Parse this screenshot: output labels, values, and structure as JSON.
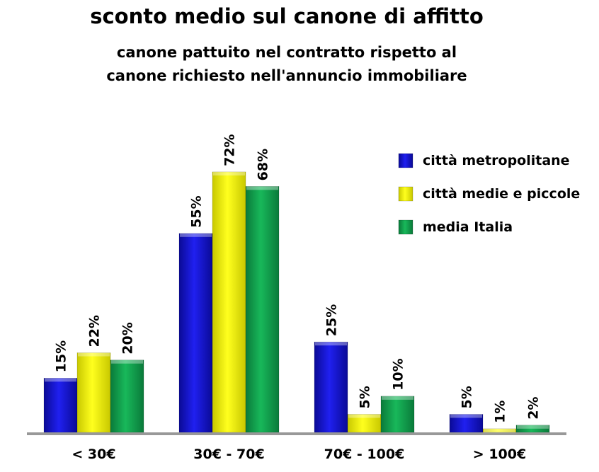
{
  "chart_data": {
    "type": "bar",
    "title": "sconto medio sul canone di affitto",
    "subtitle": [
      "canone pattuito nel contratto rispetto al",
      "canone richiesto nell'annuncio immobiliare"
    ],
    "categories": [
      "< 30€",
      "30€ - 70€",
      "70€ - 100€",
      "> 100€"
    ],
    "series": [
      {
        "name": "città metropolitane",
        "values": [
          15,
          55,
          25,
          5
        ],
        "labels": [
          "15%",
          "55%",
          "25%",
          "5%"
        ],
        "color": "#1414d2"
      },
      {
        "name": "città medie e piccole",
        "values": [
          22,
          72,
          5,
          1
        ],
        "labels": [
          "22%",
          "72%",
          "5%",
          "1%"
        ],
        "color": "#f0f00a"
      },
      {
        "name": "media Italia",
        "values": [
          20,
          68,
          10,
          2
        ],
        "labels": [
          "20%",
          "68%",
          "10%",
          "2%"
        ],
        "color": "#14a050"
      }
    ],
    "unit": "%",
    "ylim": [
      0,
      80
    ],
    "grid": false,
    "legend_position": "top-right"
  }
}
